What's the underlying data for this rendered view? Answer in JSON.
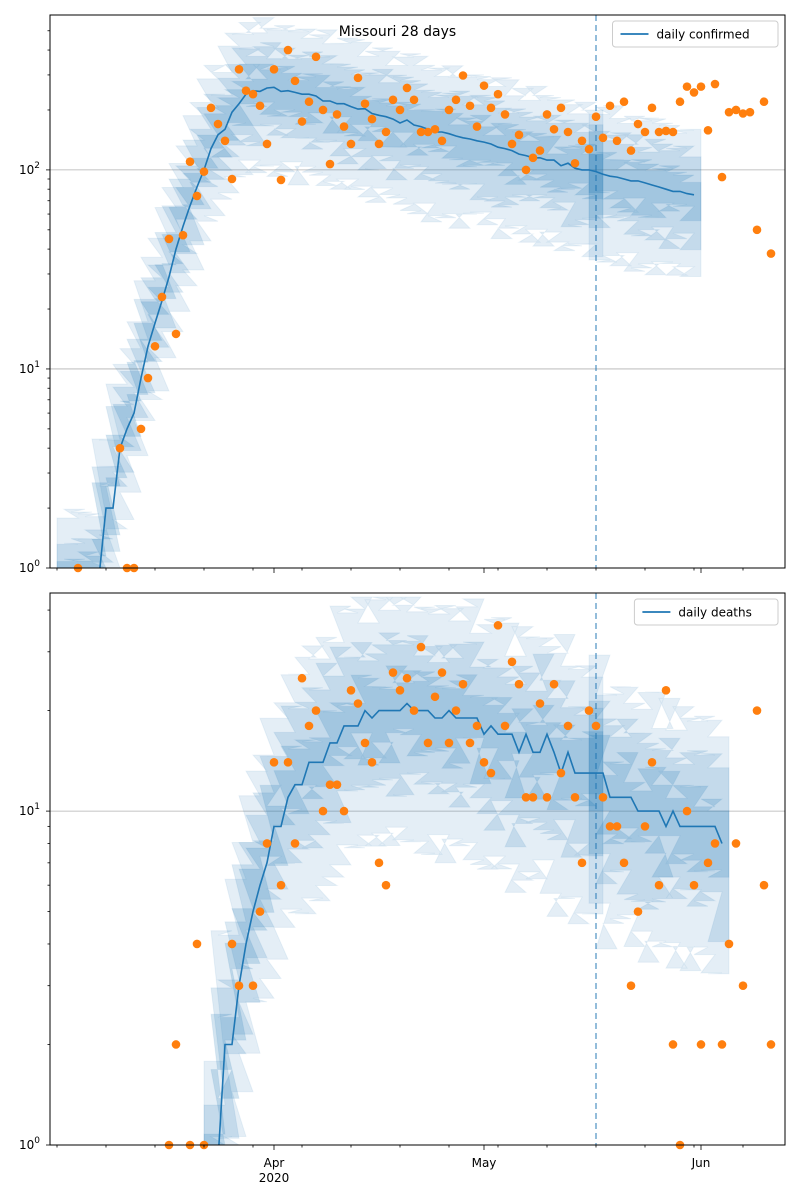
{
  "colors": {
    "line": "#1f77b4",
    "points": "#ff7f0e",
    "band": "#1f77b4",
    "vline": "#1f77b4",
    "grid": "#b0b0b0"
  },
  "chart_data": [
    {
      "type": "line",
      "title": "Missouri 28 days",
      "yscale": "log",
      "ylim": [
        1,
        600
      ],
      "xlim": [
        "2020-02-29",
        "2020-06-13"
      ],
      "grid": "horizontal at major y ticks",
      "legend_position": "top-right",
      "y_ticks": [
        {
          "value": 1,
          "base": "10",
          "exp": "0"
        },
        {
          "value": 10,
          "base": "10",
          "exp": "1"
        },
        {
          "value": 100,
          "base": "10",
          "exp": "2"
        }
      ],
      "vline_date": "2020-05-17",
      "series": [
        {
          "name": "daily confirmed",
          "kind": "line",
          "dates_start": "2020-03-03",
          "mean": [
            0.9,
            0.9,
            0.9,
            0.9,
            0.9,
            2,
            2,
            4,
            5,
            6,
            9,
            13,
            17,
            22,
            29,
            40,
            52,
            66,
            82,
            100,
            128,
            150,
            160,
            195,
            215,
            240,
            250,
            248,
            258,
            260,
            248,
            250,
            245,
            240,
            240,
            235,
            222,
            222,
            215,
            215,
            208,
            202,
            203,
            192,
            188,
            185,
            180,
            172,
            178,
            168,
            165,
            160,
            155,
            155,
            152,
            148,
            145,
            143,
            140,
            138,
            135,
            130,
            128,
            125,
            120,
            118,
            115,
            115,
            112,
            112,
            105,
            108,
            102,
            100,
            100,
            98,
            95,
            93,
            92,
            90,
            88,
            88,
            86,
            84,
            82,
            80,
            78,
            78,
            76,
            75
          ]
        },
        {
          "name": "",
          "kind": "points",
          "points": [
            [
              "2020-03-04",
              1
            ],
            [
              "2020-03-10",
              4
            ],
            [
              "2020-03-11",
              1
            ],
            [
              "2020-03-12",
              1
            ],
            [
              "2020-03-13",
              5
            ],
            [
              "2020-03-14",
              9
            ],
            [
              "2020-03-15",
              13
            ],
            [
              "2020-03-16",
              23
            ],
            [
              "2020-03-17",
              45
            ],
            [
              "2020-03-18",
              15
            ],
            [
              "2020-03-19",
              47
            ],
            [
              "2020-03-20",
              110
            ],
            [
              "2020-03-21",
              74
            ],
            [
              "2020-03-22",
              98
            ],
            [
              "2020-03-23",
              205
            ],
            [
              "2020-03-24",
              170
            ],
            [
              "2020-03-25",
              140
            ],
            [
              "2020-03-26",
              90
            ],
            [
              "2020-03-27",
              320
            ],
            [
              "2020-03-28",
              250
            ],
            [
              "2020-03-29",
              240
            ],
            [
              "2020-03-30",
              210
            ],
            [
              "2020-03-31",
              135
            ],
            [
              "2020-04-01",
              320
            ],
            [
              "2020-04-02",
              89
            ],
            [
              "2020-04-03",
              400
            ],
            [
              "2020-04-04",
              280
            ],
            [
              "2020-04-05",
              175
            ],
            [
              "2020-04-06",
              220
            ],
            [
              "2020-04-07",
              370
            ],
            [
              "2020-04-08",
              200
            ],
            [
              "2020-04-09",
              107
            ],
            [
              "2020-04-10",
              190
            ],
            [
              "2020-04-11",
              165
            ],
            [
              "2020-04-12",
              135
            ],
            [
              "2020-04-13",
              290
            ],
            [
              "2020-04-14",
              215
            ],
            [
              "2020-04-15",
              180
            ],
            [
              "2020-04-16",
              135
            ],
            [
              "2020-04-17",
              155
            ],
            [
              "2020-04-18",
              225
            ],
            [
              "2020-04-19",
              200
            ],
            [
              "2020-04-20",
              258
            ],
            [
              "2020-04-21",
              225
            ],
            [
              "2020-04-22",
              155
            ],
            [
              "2020-04-23",
              155
            ],
            [
              "2020-04-24",
              160
            ],
            [
              "2020-04-25",
              140
            ],
            [
              "2020-04-26",
              200
            ],
            [
              "2020-04-27",
              225
            ],
            [
              "2020-04-28",
              298
            ],
            [
              "2020-04-29",
              210
            ],
            [
              "2020-04-30",
              165
            ],
            [
              "2020-05-01",
              265
            ],
            [
              "2020-05-02",
              205
            ],
            [
              "2020-05-03",
              240
            ],
            [
              "2020-05-04",
              190
            ],
            [
              "2020-05-05",
              135
            ],
            [
              "2020-05-06",
              150
            ],
            [
              "2020-05-07",
              100
            ],
            [
              "2020-05-08",
              115
            ],
            [
              "2020-05-09",
              125
            ],
            [
              "2020-05-10",
              190
            ],
            [
              "2020-05-11",
              160
            ],
            [
              "2020-05-12",
              205
            ],
            [
              "2020-05-13",
              155
            ],
            [
              "2020-05-14",
              108
            ],
            [
              "2020-05-15",
              140
            ],
            [
              "2020-05-16",
              127
            ],
            [
              "2020-05-17",
              185
            ],
            [
              "2020-05-18",
              145
            ],
            [
              "2020-05-19",
              210
            ],
            [
              "2020-05-20",
              140
            ],
            [
              "2020-05-21",
              220
            ],
            [
              "2020-05-22",
              125
            ],
            [
              "2020-05-23",
              170
            ],
            [
              "2020-05-24",
              155
            ],
            [
              "2020-05-25",
              205
            ],
            [
              "2020-05-26",
              155
            ],
            [
              "2020-05-27",
              157
            ],
            [
              "2020-05-28",
              155
            ],
            [
              "2020-05-29",
              220
            ],
            [
              "2020-05-30",
              262
            ],
            [
              "2020-05-31",
              245
            ],
            [
              "2020-06-01",
              262
            ],
            [
              "2020-06-02",
              158
            ],
            [
              "2020-06-03",
              270
            ],
            [
              "2020-06-04",
              92
            ],
            [
              "2020-06-05",
              195
            ],
            [
              "2020-06-06",
              200
            ],
            [
              "2020-06-07",
              192
            ],
            [
              "2020-06-08",
              195
            ],
            [
              "2020-06-09",
              50
            ],
            [
              "2020-06-10",
              220
            ],
            [
              "2020-06-11",
              38
            ]
          ]
        }
      ]
    },
    {
      "type": "line",
      "title": "",
      "yscale": "log",
      "ylim": [
        1,
        45
      ],
      "xlim": [
        "2020-02-29",
        "2020-06-13"
      ],
      "grid": "horizontal at major y ticks",
      "legend_position": "top-right",
      "y_ticks": [
        {
          "value": 1,
          "base": "10",
          "exp": "0"
        },
        {
          "value": 10,
          "base": "10",
          "exp": "1"
        }
      ],
      "x_ticks": [
        {
          "date": "2020-04-01",
          "label": "Apr",
          "sublabel": "2020"
        },
        {
          "date": "2020-05-01",
          "label": "May",
          "sublabel": ""
        },
        {
          "date": "2020-06-01",
          "label": "Jun",
          "sublabel": ""
        }
      ],
      "vline_date": "2020-05-17",
      "series": [
        {
          "name": "daily deaths",
          "kind": "line",
          "dates_start": "2020-03-24",
          "mean": [
            0.9,
            2,
            2,
            3,
            4,
            5,
            6,
            7,
            9,
            9,
            11,
            12,
            12,
            14,
            14,
            14,
            16,
            16,
            18,
            18,
            18,
            20,
            19,
            20,
            20,
            20,
            20,
            21,
            20,
            20,
            20,
            19,
            19,
            20,
            19,
            19,
            19,
            19,
            17,
            18,
            17,
            17,
            17,
            15,
            17,
            15,
            15,
            17,
            15,
            13,
            15,
            13,
            13,
            13,
            13,
            13,
            11,
            11,
            11,
            11,
            10,
            10,
            10,
            10,
            9,
            10,
            9,
            9,
            9,
            9,
            9,
            9,
            8
          ]
        },
        {
          "name": "",
          "kind": "points",
          "points": [
            [
              "2020-03-17",
              1
            ],
            [
              "2020-03-18",
              2
            ],
            [
              "2020-03-20",
              1
            ],
            [
              "2020-03-21",
              4
            ],
            [
              "2020-03-22",
              1
            ],
            [
              "2020-03-26",
              4
            ],
            [
              "2020-03-27",
              3
            ],
            [
              "2020-03-29",
              3
            ],
            [
              "2020-03-30",
              5
            ],
            [
              "2020-03-31",
              8
            ],
            [
              "2020-04-01",
              14
            ],
            [
              "2020-04-02",
              6
            ],
            [
              "2020-04-03",
              14
            ],
            [
              "2020-04-04",
              8
            ],
            [
              "2020-04-05",
              25
            ],
            [
              "2020-04-06",
              18
            ],
            [
              "2020-04-07",
              20
            ],
            [
              "2020-04-08",
              10
            ],
            [
              "2020-04-09",
              12
            ],
            [
              "2020-04-10",
              12
            ],
            [
              "2020-04-11",
              10
            ],
            [
              "2020-04-12",
              23
            ],
            [
              "2020-04-13",
              21
            ],
            [
              "2020-04-14",
              16
            ],
            [
              "2020-04-15",
              14
            ],
            [
              "2020-04-16",
              7
            ],
            [
              "2020-04-17",
              6
            ],
            [
              "2020-04-18",
              26
            ],
            [
              "2020-04-19",
              23
            ],
            [
              "2020-04-20",
              25
            ],
            [
              "2020-04-21",
              20
            ],
            [
              "2020-04-22",
              31
            ],
            [
              "2020-04-23",
              16
            ],
            [
              "2020-04-24",
              22
            ],
            [
              "2020-04-25",
              26
            ],
            [
              "2020-04-26",
              16
            ],
            [
              "2020-04-27",
              20
            ],
            [
              "2020-04-28",
              24
            ],
            [
              "2020-04-29",
              16
            ],
            [
              "2020-04-30",
              18
            ],
            [
              "2020-05-01",
              14
            ],
            [
              "2020-05-02",
              13
            ],
            [
              "2020-05-03",
              36
            ],
            [
              "2020-05-04",
              18
            ],
            [
              "2020-05-05",
              28
            ],
            [
              "2020-05-06",
              24
            ],
            [
              "2020-05-07",
              11
            ],
            [
              "2020-05-08",
              11
            ],
            [
              "2020-05-09",
              21
            ],
            [
              "2020-05-10",
              11
            ],
            [
              "2020-05-11",
              24
            ],
            [
              "2020-05-12",
              13
            ],
            [
              "2020-05-13",
              18
            ],
            [
              "2020-05-14",
              11
            ],
            [
              "2020-05-15",
              7
            ],
            [
              "2020-05-16",
              20
            ],
            [
              "2020-05-17",
              18
            ],
            [
              "2020-05-18",
              11
            ],
            [
              "2020-05-19",
              9
            ],
            [
              "2020-05-20",
              9
            ],
            [
              "2020-05-21",
              7
            ],
            [
              "2020-05-22",
              3
            ],
            [
              "2020-05-23",
              5
            ],
            [
              "2020-05-24",
              9
            ],
            [
              "2020-05-25",
              14
            ],
            [
              "2020-05-26",
              6
            ],
            [
              "2020-05-27",
              23
            ],
            [
              "2020-05-28",
              2
            ],
            [
              "2020-05-29",
              1
            ],
            [
              "2020-05-30",
              10
            ],
            [
              "2020-05-31",
              6
            ],
            [
              "2020-06-01",
              2
            ],
            [
              "2020-06-02",
              7
            ],
            [
              "2020-06-03",
              8
            ],
            [
              "2020-06-04",
              2
            ],
            [
              "2020-06-05",
              4
            ],
            [
              "2020-06-06",
              8
            ],
            [
              "2020-06-07",
              3
            ],
            [
              "2020-06-09",
              20
            ],
            [
              "2020-06-10",
              6
            ],
            [
              "2020-06-11",
              2
            ]
          ]
        }
      ]
    }
  ]
}
